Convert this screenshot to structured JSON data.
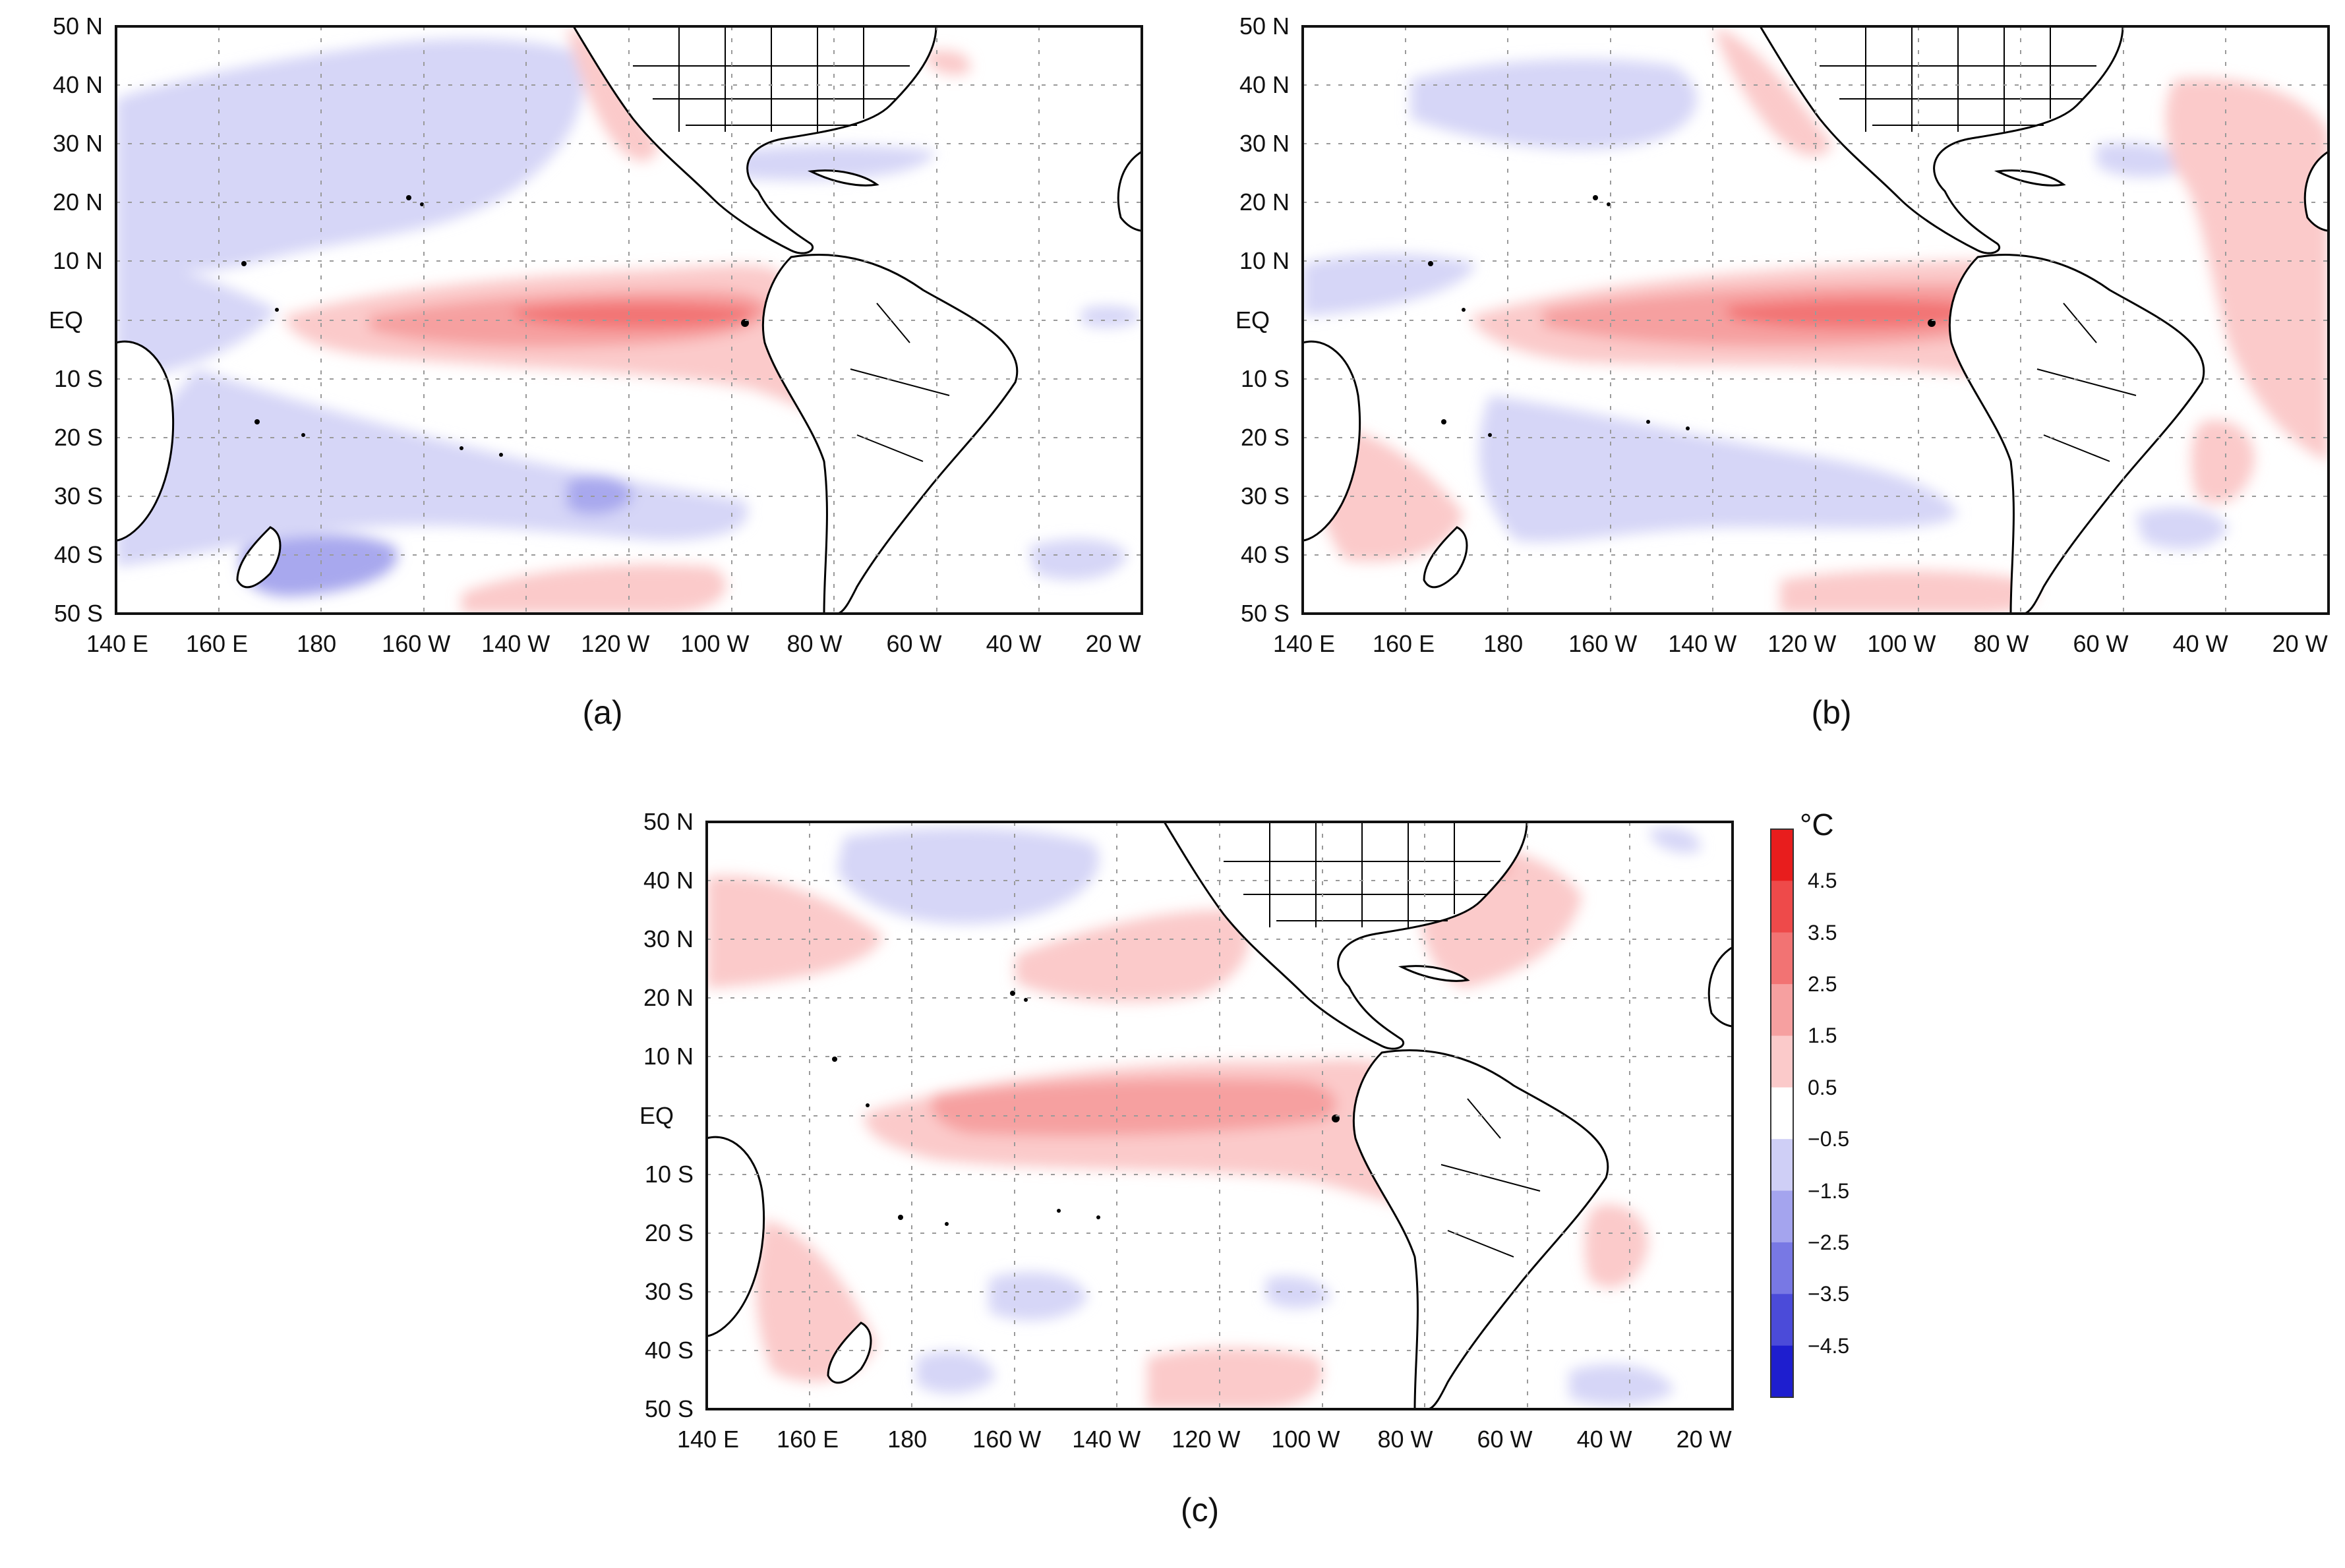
{
  "figure": {
    "panels": [
      {
        "id": "a",
        "caption": "(a)",
        "lat_labels": [
          "50 N",
          "40 N",
          "30 N",
          "20 N",
          "10 N",
          "EQ",
          "10 S",
          "20 S",
          "30 S",
          "40 S",
          "50 S"
        ],
        "lon_labels": [
          "140 E",
          "160 E",
          "180",
          "160 W",
          "140 W",
          "120 W",
          "100 W",
          "80 W",
          "60 W",
          "40 W",
          "20 W"
        ],
        "anomaly_pattern": "El Nino warm tongue, cool North/South Pacific"
      },
      {
        "id": "b",
        "caption": "(b)",
        "lat_labels": [
          "50 N",
          "40 N",
          "30 N",
          "20 N",
          "10 N",
          "EQ",
          "10 S",
          "20 S",
          "30 S",
          "40 S",
          "50 S"
        ],
        "lon_labels": [
          "140 E",
          "160 E",
          "180",
          "160 W",
          "140 W",
          "120 W",
          "100 W",
          "80 W",
          "60 W",
          "40 W",
          "20 W"
        ],
        "anomaly_pattern": "El Nino warm tongue, weaker cool lobes"
      },
      {
        "id": "c",
        "caption": "(c)",
        "lat_labels": [
          "50 N",
          "40 N",
          "30 N",
          "20 N",
          "10 N",
          "EQ",
          "10 S",
          "20 S",
          "30 S",
          "40 S",
          "50 S"
        ],
        "lon_labels": [
          "140 E",
          "160 E",
          "180",
          "160 W",
          "140 W",
          "120 W",
          "100 W",
          "80 W",
          "60 W",
          "40 W",
          "20 W"
        ],
        "anomaly_pattern": "widespread weak warming"
      }
    ],
    "colorbar": {
      "unit": "°C",
      "labels": [
        "4.5",
        "3.5",
        "2.5",
        "1.5",
        "0.5",
        "−0.5",
        "−1.5",
        "−2.5",
        "−3.5",
        "−4.5"
      ],
      "levels": [
        4.5,
        3.5,
        2.5,
        1.5,
        0.5,
        -0.5,
        -1.5,
        -2.5,
        -3.5,
        -4.5
      ],
      "colors": [
        "#e81d1d",
        "#ee4a4a",
        "#f27373",
        "#f6a0a0",
        "#fbcaca",
        "#ffffff",
        "#cfcff6",
        "#a4a4ee",
        "#7878e4",
        "#4b4bd9",
        "#1e1ecf"
      ]
    },
    "colors": {
      "frame": "#111111",
      "grid": "#9a9a9a",
      "coast": "#000000"
    }
  }
}
